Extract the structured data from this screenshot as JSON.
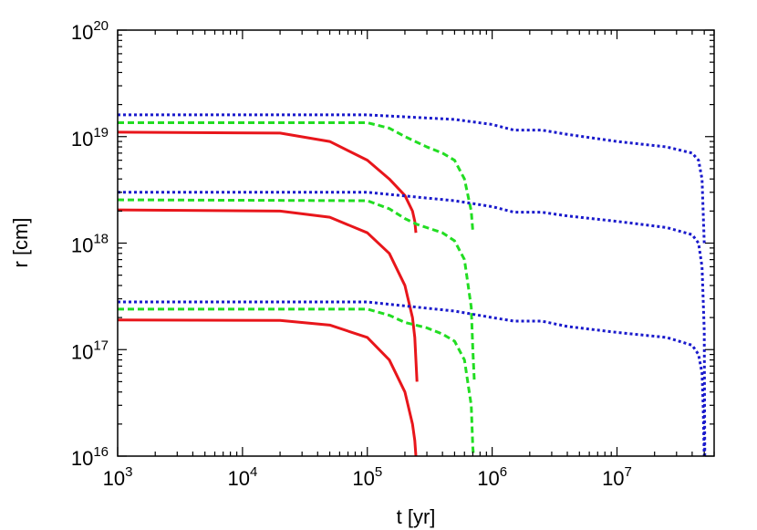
{
  "chart_data": {
    "type": "line",
    "xscale": "log",
    "yscale": "log",
    "xlabel": "t  [yr]",
    "ylabel": "r  [cm]",
    "xlim": [
      1000,
      60000000
    ],
    "ylim": [
      1e+16,
      1e+20
    ],
    "x_ticks": [
      {
        "base": "10",
        "exp": "3",
        "value": 1000
      },
      {
        "base": "10",
        "exp": "4",
        "value": 10000
      },
      {
        "base": "10",
        "exp": "5",
        "value": 100000
      },
      {
        "base": "10",
        "exp": "6",
        "value": 1000000
      },
      {
        "base": "10",
        "exp": "7",
        "value": 10000000
      }
    ],
    "y_ticks": [
      {
        "base": "10",
        "exp": "16",
        "value": 1e+16
      },
      {
        "base": "10",
        "exp": "17",
        "value": 1e+17
      },
      {
        "base": "10",
        "exp": "18",
        "value": 1e+18
      },
      {
        "base": "10",
        "exp": "19",
        "value": 1e+19
      },
      {
        "base": "10",
        "exp": "20",
        "value": 1e+20
      }
    ],
    "grid": false,
    "legend": "none",
    "series": [
      {
        "color": "#e8161b",
        "style": "solid",
        "points": [
          [
            1000,
            1.1e+19
          ],
          [
            20000,
            1.08e+19
          ],
          [
            50000,
            9e+18
          ],
          [
            100000,
            6e+18
          ],
          [
            150000,
            4e+18
          ],
          [
            200000,
            2.8e+18
          ],
          [
            230000,
            2e+18
          ],
          [
            240000,
            1.6e+18
          ],
          [
            245000,
            1.25e+18
          ]
        ]
      },
      {
        "color": "#e8161b",
        "style": "solid",
        "points": [
          [
            1000,
            2.05e+18
          ],
          [
            20000,
            2e+18
          ],
          [
            50000,
            1.75e+18
          ],
          [
            100000,
            1.25e+18
          ],
          [
            150000,
            8e+17
          ],
          [
            200000,
            4e+17
          ],
          [
            230000,
            2e+17
          ],
          [
            240000,
            1.3e+17
          ],
          [
            250000,
            5e+16
          ]
        ]
      },
      {
        "color": "#e8161b",
        "style": "solid",
        "points": [
          [
            1000,
            1.9e+17
          ],
          [
            20000,
            1.88e+17
          ],
          [
            50000,
            1.7e+17
          ],
          [
            100000,
            1.3e+17
          ],
          [
            150000,
            8e+16
          ],
          [
            200000,
            4e+16
          ],
          [
            230000,
            2e+16
          ],
          [
            240000,
            1.4e+16
          ],
          [
            245000,
            1e+16
          ]
        ]
      },
      {
        "color": "#22dd22",
        "style": "dashed",
        "points": [
          [
            1000,
            1.35e+19
          ],
          [
            100000,
            1.35e+19
          ],
          [
            150000,
            1.2e+19
          ],
          [
            200000,
            1e+19
          ],
          [
            300000,
            8e+18
          ],
          [
            400000,
            7e+18
          ],
          [
            500000,
            6e+18
          ],
          [
            600000,
            4e+18
          ],
          [
            680000,
            2e+18
          ],
          [
            700000,
            1.3e+18
          ]
        ]
      },
      {
        "color": "#22dd22",
        "style": "dashed",
        "points": [
          [
            1000,
            2.55e+18
          ],
          [
            100000,
            2.5e+18
          ],
          [
            150000,
            2.1e+18
          ],
          [
            200000,
            1.7e+18
          ],
          [
            250000,
            1.5e+18
          ],
          [
            400000,
            1.25e+18
          ],
          [
            500000,
            1.05e+18
          ],
          [
            600000,
            7e+17
          ],
          [
            680000,
            2.5e+17
          ],
          [
            700000,
            1e+17
          ],
          [
            720000,
            5e+16
          ]
        ]
      },
      {
        "color": "#22dd22",
        "style": "dashed",
        "points": [
          [
            1000,
            2.4e+17
          ],
          [
            100000,
            2.4e+17
          ],
          [
            150000,
            2.1e+17
          ],
          [
            200000,
            1.8e+17
          ],
          [
            300000,
            1.6e+17
          ],
          [
            400000,
            1.4e+17
          ],
          [
            500000,
            1.2e+17
          ],
          [
            600000,
            8e+16
          ],
          [
            680000,
            3e+16
          ],
          [
            700000,
            1.2e+16
          ],
          [
            710000,
            1e+16
          ]
        ]
      },
      {
        "color": "#1a1acc",
        "style": "dotted",
        "points": [
          [
            1000,
            1.6e+19
          ],
          [
            100000,
            1.6e+19
          ],
          [
            500000,
            1.45e+19
          ],
          [
            1000000,
            1.3e+19
          ],
          [
            1500000,
            1.15e+19
          ],
          [
            2500000,
            1.15e+19
          ],
          [
            4000000,
            1.05e+19
          ],
          [
            10000000,
            9e+18
          ],
          [
            25000000,
            8e+18
          ],
          [
            40000000,
            7e+18
          ],
          [
            45000000,
            6e+18
          ],
          [
            48000000,
            4e+18
          ],
          [
            49000000,
            2e+18
          ],
          [
            50000000,
            1e+18
          ]
        ]
      },
      {
        "color": "#1a1acc",
        "style": "dotted",
        "points": [
          [
            1000,
            3e+18
          ],
          [
            100000,
            3e+18
          ],
          [
            500000,
            2.5e+18
          ],
          [
            1000000,
            2.2e+18
          ],
          [
            1500000,
            1.95e+18
          ],
          [
            2500000,
            1.95e+18
          ],
          [
            4000000,
            1.8e+18
          ],
          [
            10000000,
            1.6e+18
          ],
          [
            25000000,
            1.4e+18
          ],
          [
            40000000,
            1.2e+18
          ],
          [
            45000000,
            1e+18
          ],
          [
            48000000,
            6e+17
          ],
          [
            49000000,
            3e+17
          ],
          [
            50000000,
            1.5e+17
          ],
          [
            50500000,
            1e+16
          ]
        ]
      },
      {
        "color": "#1a1acc",
        "style": "dotted",
        "points": [
          [
            1000,
            2.8e+17
          ],
          [
            100000,
            2.8e+17
          ],
          [
            500000,
            2.3e+17
          ],
          [
            1000000,
            2e+17
          ],
          [
            1500000,
            1.85e+17
          ],
          [
            2500000,
            1.85e+17
          ],
          [
            4000000,
            1.65e+17
          ],
          [
            10000000,
            1.45e+17
          ],
          [
            25000000,
            1.3e+17
          ],
          [
            40000000,
            1.1e+17
          ],
          [
            45000000,
            9e+16
          ],
          [
            48000000,
            6e+16
          ],
          [
            49000000,
            3e+16
          ],
          [
            50000000,
            1e+16
          ]
        ]
      }
    ]
  }
}
